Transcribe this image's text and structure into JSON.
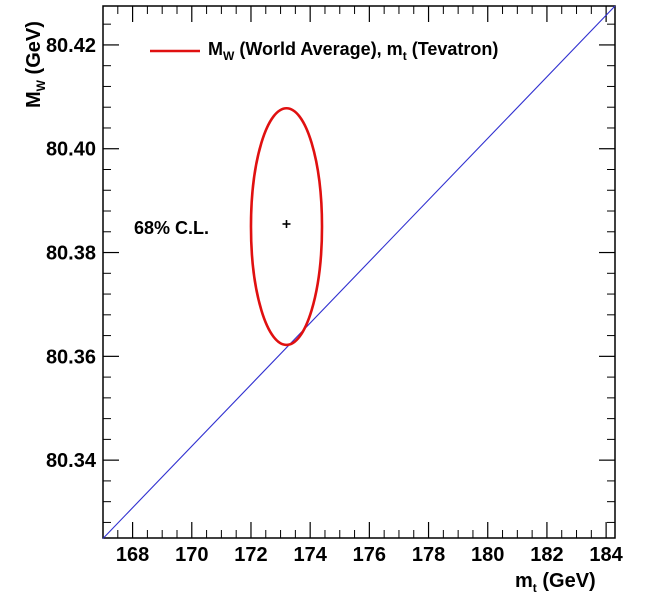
{
  "chart_data": {
    "type": "scatter",
    "x_axis": {
      "label_main": "m",
      "label_sub": "t",
      "label_unit": " (GeV)",
      "range": [
        167.0,
        184.3
      ],
      "major_ticks": [
        168,
        170,
        172,
        174,
        176,
        178,
        180,
        182,
        184
      ],
      "tick_labels": [
        "168",
        "170",
        "172",
        "174",
        "176",
        "178",
        "180",
        "182",
        "184"
      ],
      "minor_step": 0.5
    },
    "y_axis": {
      "label_main": "M",
      "label_sub": "W",
      "label_unit": " (GeV)",
      "range": [
        80.325,
        80.4275
      ],
      "major_ticks": [
        80.34,
        80.36,
        80.38,
        80.4,
        80.42
      ],
      "tick_labels": [
        "80.34",
        "80.36",
        "80.38",
        "80.40",
        "80.42"
      ],
      "minor_step": 0.004
    },
    "legend": {
      "position": "top",
      "entry_main": "M",
      "entry_sub": "W",
      "entry_mid": " (World Average), m",
      "entry_sub2": "t",
      "entry_end": " (Tevatron)",
      "color": "#e01010"
    },
    "central_value": {
      "x": 173.2,
      "y": 80.3855
    },
    "ellipse": {
      "center_x": 173.2,
      "center_y": 80.385,
      "semi_axis_x": 1.2,
      "semi_axis_y": 0.0228,
      "color": "#e01010",
      "label": "68% C.L."
    },
    "reference_line": {
      "points": [
        [
          167.0,
          80.3249
        ],
        [
          184.3,
          80.4275
        ]
      ],
      "color": "#3030d0"
    },
    "grid": false
  }
}
